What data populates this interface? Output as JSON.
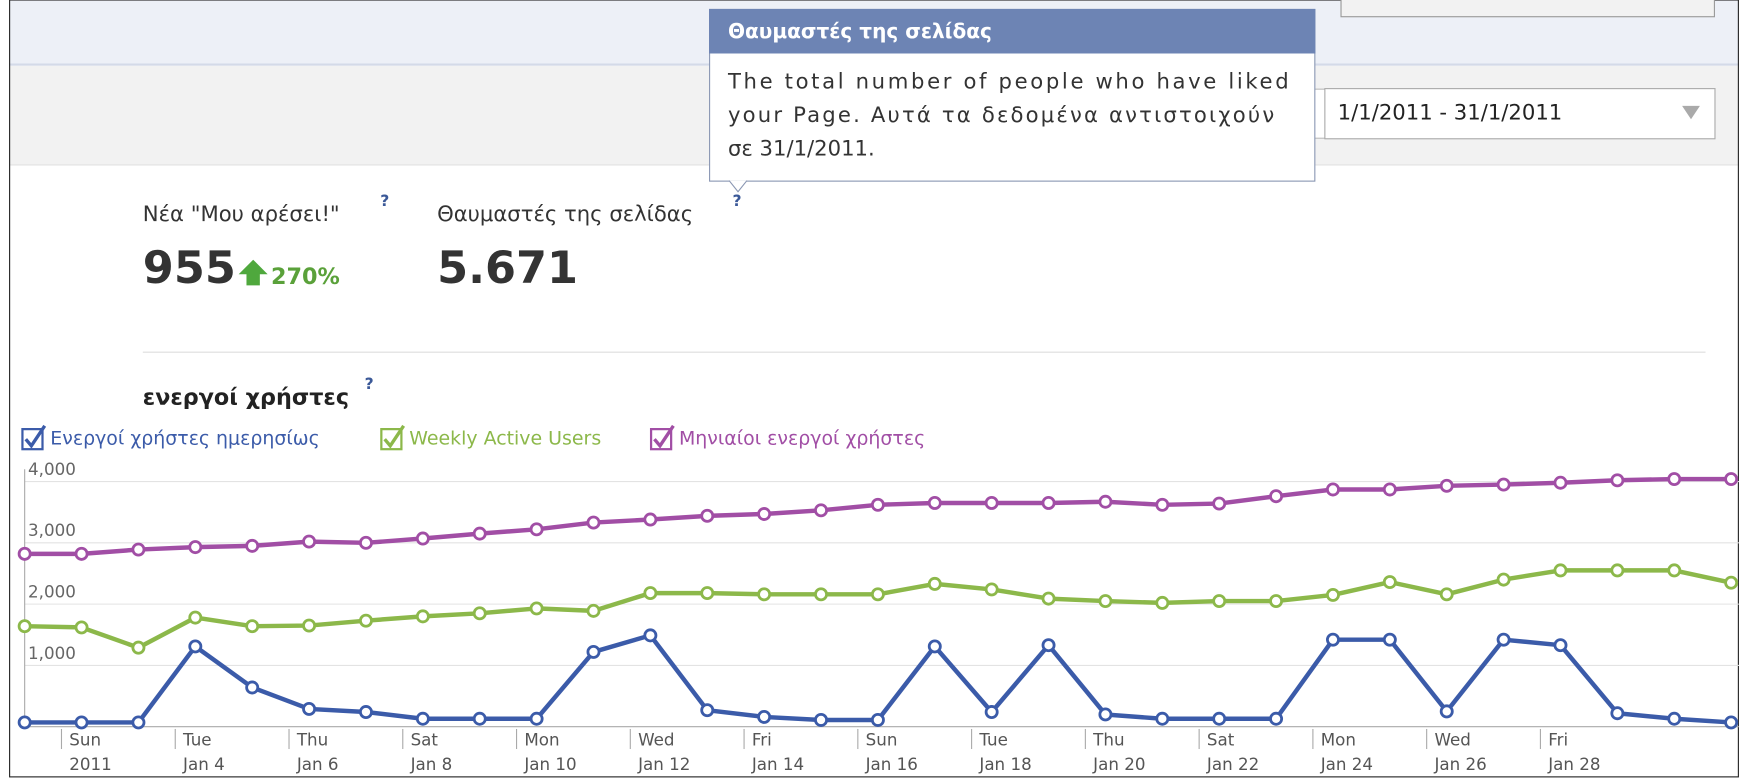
{
  "tooltip": {
    "title": "Θαυμαστές της σελίδας",
    "lines": [
      "The total number of people who have liked",
      "your Page. Αυτά τα δεδομένα αντιστοιχούν",
      "σε 31/1/2011."
    ]
  },
  "date_range": "1/1/2011 - 31/1/2011",
  "help_mark": "?",
  "stats": [
    {
      "label": "Νέα \"Μου αρέσει!\"",
      "value": "955",
      "change": "270%"
    },
    {
      "label": "Θαυμαστές της σελίδας",
      "value": "5.671"
    }
  ],
  "chart_data": {
    "type": "line",
    "title": "ενεργοί χρήστες",
    "categories": [
      null,
      [
        "Sun",
        "2011"
      ],
      null,
      [
        "Tue",
        "Jan 4"
      ],
      null,
      [
        "Thu",
        "Jan 6"
      ],
      null,
      [
        "Sat",
        "Jan 8"
      ],
      null,
      [
        "Mon",
        "Jan 10"
      ],
      null,
      [
        "Wed",
        "Jan 12"
      ],
      null,
      [
        "Fri",
        "Jan 14"
      ],
      null,
      [
        "Sun",
        "Jan 16"
      ],
      null,
      [
        "Tue",
        "Jan 18"
      ],
      null,
      [
        "Thu",
        "Jan 20"
      ],
      null,
      [
        "Sat",
        "Jan 22"
      ],
      null,
      [
        "Mon",
        "Jan 24"
      ],
      null,
      [
        "Wed",
        "Jan 26"
      ],
      null,
      [
        "Fri",
        "Jan 28"
      ],
      null,
      null,
      null
    ],
    "series": [
      {
        "name": "Ενεργοί χρήστες ημερησίως",
        "color": "#3b5ba9",
        "values": [
          70,
          70,
          70,
          1310,
          640,
          290,
          240,
          130,
          130,
          130,
          1220,
          1490,
          270,
          160,
          110,
          110,
          1310,
          240,
          1330,
          200,
          130,
          130,
          130,
          1420,
          1420,
          250,
          1420,
          1330,
          220,
          130,
          70
        ]
      },
      {
        "name": "Weekly Active Users",
        "color": "#8cb84a",
        "values": [
          1640,
          1620,
          1290,
          1780,
          1640,
          1650,
          1730,
          1800,
          1850,
          1930,
          1890,
          2180,
          2180,
          2160,
          2160,
          2160,
          2330,
          2240,
          2090,
          2050,
          2020,
          2050,
          2050,
          2150,
          2360,
          2160,
          2400,
          2550,
          2550,
          2550,
          2350
        ]
      },
      {
        "name": "Μηνιαίοι ενεργοί χρήστες",
        "color": "#a14ea5",
        "values": [
          2820,
          2820,
          2890,
          2930,
          2950,
          3020,
          3000,
          3070,
          3150,
          3220,
          3330,
          3380,
          3440,
          3470,
          3530,
          3620,
          3650,
          3650,
          3650,
          3670,
          3620,
          3640,
          3760,
          3870,
          3870,
          3930,
          3950,
          3980,
          4020,
          4040,
          4040
        ]
      }
    ],
    "ylim": [
      0,
      4200
    ],
    "yticks": [
      {
        "value": 1000,
        "label": "1,000"
      },
      {
        "value": 2000,
        "label": "2,000"
      },
      {
        "value": 3000,
        "label": "3,000"
      },
      {
        "value": 4000,
        "label": "4,000"
      }
    ],
    "grid": true
  }
}
